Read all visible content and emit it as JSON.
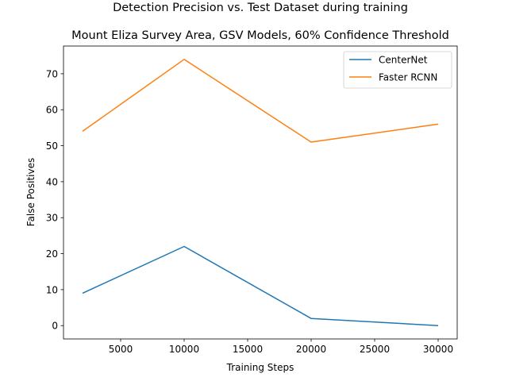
{
  "chart_data": {
    "type": "line",
    "title": "Detection Precision vs. Test Dataset during training",
    "subtitle": "Mount Eliza Survey Area, GSV Models, 60% Confidence Threshold",
    "xlabel": "Training Steps",
    "ylabel": "False Positives",
    "x": [
      2000,
      10000,
      20000,
      30000
    ],
    "series": [
      {
        "name": "CenterNet",
        "color": "#1f77b4",
        "values": [
          9,
          22,
          2,
          0
        ]
      },
      {
        "name": "Faster RCNN",
        "color": "#ff7f0e",
        "values": [
          54,
          74,
          51,
          56
        ]
      }
    ],
    "xlim": [
      500,
      31500
    ],
    "ylim": [
      -3.7,
      77.7
    ],
    "xticks": [
      5000,
      10000,
      15000,
      20000,
      25000,
      30000
    ],
    "yticks": [
      0,
      10,
      20,
      30,
      40,
      50,
      60,
      70
    ],
    "legend_position": "top-right",
    "grid": false
  }
}
